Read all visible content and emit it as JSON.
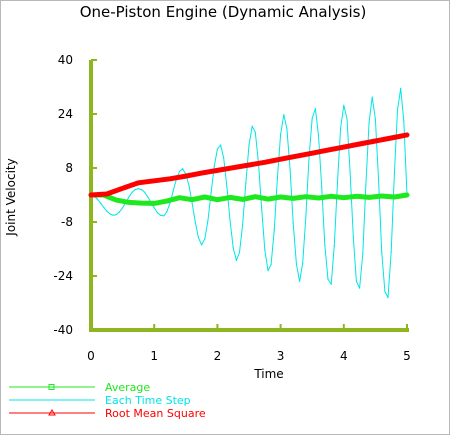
{
  "chart_data": {
    "type": "line",
    "title": "One-Piston Engine (Dynamic Analysis)",
    "xlabel": "Time",
    "ylabel": "Joint Velocity",
    "xlim": [
      0,
      5
    ],
    "ylim": [
      -40,
      40
    ],
    "x_ticks": [
      "0",
      "1",
      "2",
      "3",
      "4",
      "5"
    ],
    "y_ticks": [
      "40",
      "24",
      "8",
      "-8",
      "-24",
      "-40"
    ],
    "grid": false,
    "legend_position": "bottom-left",
    "axis_color": "#8fb521",
    "series": [
      {
        "name": "Average",
        "color": "#1ee81e",
        "marker": "square",
        "x": [
          0,
          0.2,
          0.4,
          0.6,
          0.8,
          1.0,
          1.2,
          1.4,
          1.6,
          1.8,
          2.0,
          2.2,
          2.4,
          2.6,
          2.8,
          3.0,
          3.2,
          3.4,
          3.6,
          3.8,
          4.0,
          4.2,
          4.4,
          4.6,
          4.8,
          5.0
        ],
        "y": [
          0,
          0,
          -1.5,
          -2.2,
          -2.4,
          -2.5,
          -1.8,
          -0.8,
          -1.4,
          -0.6,
          -1.4,
          -0.7,
          -1.3,
          -0.5,
          -1.2,
          -0.6,
          -1.0,
          -0.5,
          -0.9,
          -0.4,
          -0.8,
          -0.4,
          -0.7,
          -0.3,
          -0.6,
          0
        ]
      },
      {
        "name": "Each Time Step",
        "color": "#00e5e5",
        "marker": "none",
        "x": [
          0,
          0.05,
          0.1,
          0.15,
          0.2,
          0.25,
          0.3,
          0.35,
          0.4,
          0.45,
          0.5,
          0.55,
          0.6,
          0.65,
          0.7,
          0.75,
          0.8,
          0.85,
          0.9,
          0.95,
          1.0,
          1.05,
          1.1,
          1.15,
          1.2,
          1.25,
          1.3,
          1.35,
          1.4,
          1.45,
          1.5,
          1.55,
          1.6,
          1.65,
          1.7,
          1.75,
          1.8,
          1.85,
          1.9,
          1.95,
          2.0,
          2.05,
          2.1,
          2.15,
          2.2,
          2.25,
          2.3,
          2.35,
          2.4,
          2.45,
          2.5,
          2.55,
          2.6,
          2.65,
          2.7,
          2.75,
          2.8,
          2.85,
          2.9,
          2.95,
          3.0,
          3.05,
          3.1,
          3.15,
          3.2,
          3.25,
          3.3,
          3.35,
          3.4,
          3.45,
          3.5,
          3.55,
          3.6,
          3.65,
          3.7,
          3.75,
          3.8,
          3.85,
          3.9,
          3.95,
          4.0,
          4.05,
          4.1,
          4.15,
          4.2,
          4.25,
          4.3,
          4.35,
          4.4,
          4.45,
          4.5,
          4.55,
          4.6,
          4.65,
          4.7,
          4.75,
          4.8,
          4.85,
          4.9,
          4.95,
          5.0
        ],
        "y": [
          0,
          -0.4,
          -1.2,
          -2.4,
          -3.6,
          -4.8,
          -5.6,
          -6.0,
          -5.8,
          -5.0,
          -3.8,
          -2.2,
          -0.6,
          0.8,
          1.6,
          1.9,
          1.6,
          0.8,
          -0.6,
          -2.2,
          -3.8,
          -5.2,
          -6.0,
          -6.2,
          -5.0,
          -2.4,
          1.2,
          4.6,
          7.0,
          7.8,
          6.2,
          2.8,
          -2.4,
          -8.0,
          -12.6,
          -14.8,
          -13.0,
          -7.6,
          0.6,
          8.4,
          13.6,
          14.8,
          11.0,
          2.4,
          -7.4,
          -15.6,
          -19.4,
          -17.0,
          -8.6,
          3.4,
          14.8,
          20.4,
          18.6,
          9.4,
          -3.8,
          -16.2,
          -22.4,
          -20.6,
          -10.2,
          5.0,
          18.0,
          23.8,
          19.6,
          7.6,
          -8.4,
          -20.4,
          -25.6,
          -20.2,
          -6.2,
          11.0,
          22.8,
          25.6,
          17.6,
          2.4,
          -14.8,
          -25.0,
          -26.4,
          -15.0,
          3.8,
          19.8,
          26.6,
          22.6,
          6.8,
          -12.4,
          -25.6,
          -27.6,
          -17.4,
          3.2,
          21.6,
          29.0,
          22.4,
          4.2,
          -16.8,
          -28.6,
          -30.4,
          -16.8,
          6.4,
          25.2,
          31.6,
          22.0,
          0.0
        ]
      },
      {
        "name": "Root Mean Square",
        "color": "#ff0000",
        "marker": "triangle",
        "x": [
          0,
          0.25,
          0.5,
          0.75,
          1.0,
          1.25,
          1.5,
          1.75,
          2.0,
          2.25,
          2.5,
          2.75,
          3.0,
          3.25,
          3.5,
          3.75,
          4.0,
          4.25,
          4.5,
          4.75,
          5.0
        ],
        "y": [
          0,
          0.3,
          2.0,
          3.6,
          4.2,
          4.8,
          5.6,
          6.5,
          7.3,
          8.1,
          8.9,
          9.7,
          10.6,
          11.5,
          12.4,
          13.3,
          14.2,
          15.1,
          16.0,
          16.9,
          17.8
        ]
      }
    ]
  }
}
